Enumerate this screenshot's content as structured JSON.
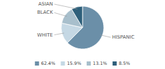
{
  "chart_data": {
    "type": "pie",
    "categories": [
      "HISPANIC",
      "WHITE",
      "BLACK",
      "ASIAN"
    ],
    "values": [
      62.4,
      15.9,
      13.1,
      8.5
    ],
    "value_labels": [
      "62.4%",
      "15.9%",
      "13.1%",
      "8.5%"
    ],
    "colors": [
      "#6b8fa8",
      "#c5d8e4",
      "#a8bfcc",
      "#2e5f7a"
    ],
    "legend": "bottom"
  }
}
